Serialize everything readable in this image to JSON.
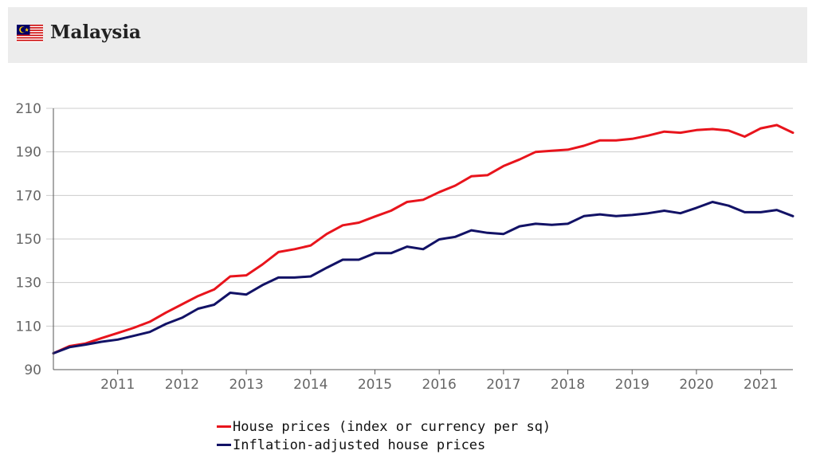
{
  "header": {
    "title": "Malaysia",
    "flag_icon": "malaysia-flag-icon"
  },
  "colors": {
    "header_bg": "#ececec",
    "series_nominal": "#e8141c",
    "series_real": "#121266",
    "grid": "#cccccc",
    "axis": "#555555"
  },
  "chart_data": {
    "type": "line",
    "title": "",
    "xlabel": "",
    "ylabel": "",
    "xlim": [
      2010.0,
      2021.5
    ],
    "ylim": [
      90,
      210
    ],
    "y_ticks": [
      90,
      110,
      130,
      150,
      170,
      190,
      210
    ],
    "x_ticks": [
      2011,
      2012,
      2013,
      2014,
      2015,
      2016,
      2017,
      2018,
      2019,
      2020,
      2021
    ],
    "grid": "horizontal",
    "legend_position": "bottom",
    "x": [
      2010.0,
      2010.25,
      2010.5,
      2010.75,
      2011.0,
      2011.25,
      2011.5,
      2011.75,
      2012.0,
      2012.25,
      2012.5,
      2012.75,
      2013.0,
      2013.25,
      2013.5,
      2013.75,
      2014.0,
      2014.25,
      2014.5,
      2014.75,
      2015.0,
      2015.25,
      2015.5,
      2015.75,
      2016.0,
      2016.25,
      2016.5,
      2016.75,
      2017.0,
      2017.25,
      2017.5,
      2017.75,
      2018.0,
      2018.25,
      2018.5,
      2018.75,
      2019.0,
      2019.25,
      2019.5,
      2019.75,
      2020.0,
      2020.25,
      2020.5,
      2020.75,
      2021.0,
      2021.25,
      2021.5
    ],
    "series": [
      {
        "name": "House prices (index or currency per sq)",
        "color": "#e8141c",
        "values": [
          97.5,
          100.8,
          102.0,
          104.5,
          106.8,
          109.2,
          112.0,
          116.2,
          120.0,
          123.8,
          126.8,
          132.8,
          133.3,
          138.3,
          144.0,
          145.3,
          147.0,
          152.3,
          156.3,
          157.5,
          160.3,
          163.0,
          167.0,
          168.0,
          171.5,
          174.5,
          178.8,
          179.3,
          183.5,
          186.5,
          190.0,
          190.5,
          191.0,
          192.8,
          195.3,
          195.3,
          196.0,
          197.5,
          199.3,
          198.8,
          200.0,
          200.5,
          199.8,
          197.0,
          200.8,
          202.3,
          198.8
        ]
      },
      {
        "name": "Inflation-adjusted house prices",
        "color": "#121266",
        "values": [
          97.5,
          100.3,
          101.5,
          102.8,
          103.8,
          105.5,
          107.3,
          111.0,
          113.8,
          118.0,
          119.8,
          125.3,
          124.5,
          128.8,
          132.3,
          132.3,
          132.8,
          136.8,
          140.5,
          140.5,
          143.5,
          143.5,
          146.5,
          145.3,
          149.8,
          151.0,
          154.0,
          152.8,
          152.3,
          155.8,
          157.0,
          156.5,
          157.0,
          160.5,
          161.3,
          160.5,
          161.0,
          161.8,
          163.0,
          161.8,
          164.3,
          167.0,
          165.3,
          162.3,
          162.3,
          163.3,
          160.5
        ]
      }
    ]
  }
}
